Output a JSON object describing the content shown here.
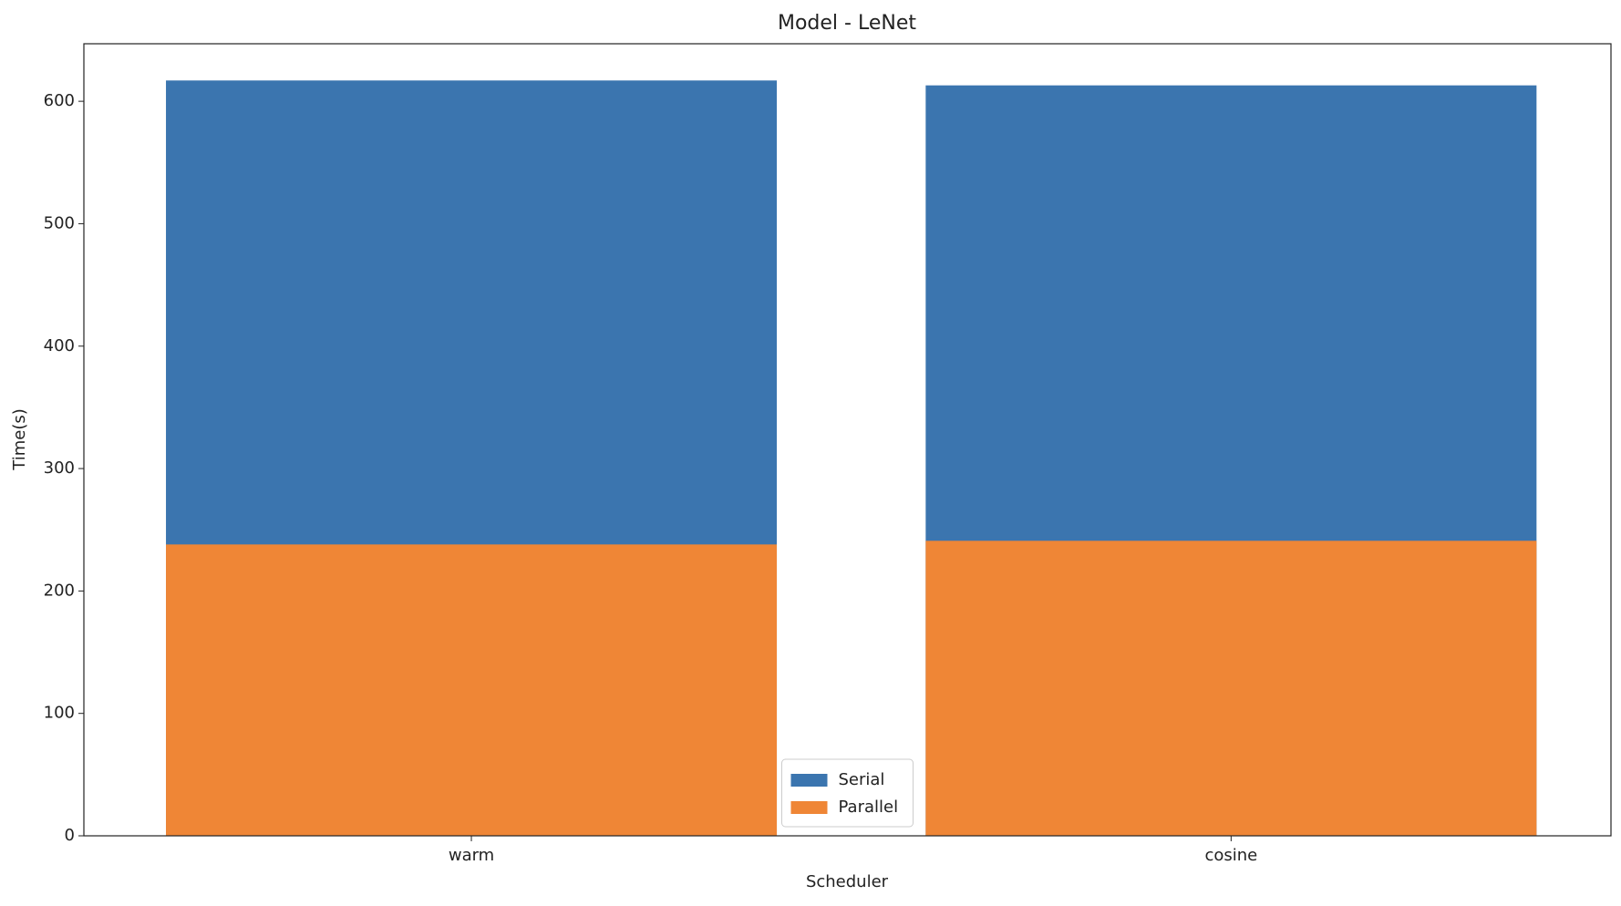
{
  "chart_data": {
    "type": "bar",
    "title": "Model - LeNet",
    "x_label": "Scheduler",
    "y_label": "Time(s)",
    "categories": [
      "warm",
      "cosine"
    ],
    "series": [
      {
        "name": "Serial",
        "color": "#3b75af",
        "values": [
          617,
          613
        ]
      },
      {
        "name": "Parallel",
        "color": "#ef8636",
        "values": [
          238,
          241
        ]
      }
    ],
    "ylim": [
      0,
      647
    ],
    "yticks": [
      0,
      100,
      200,
      300,
      400,
      500,
      600
    ],
    "grid": false,
    "legend": "lower center"
  }
}
